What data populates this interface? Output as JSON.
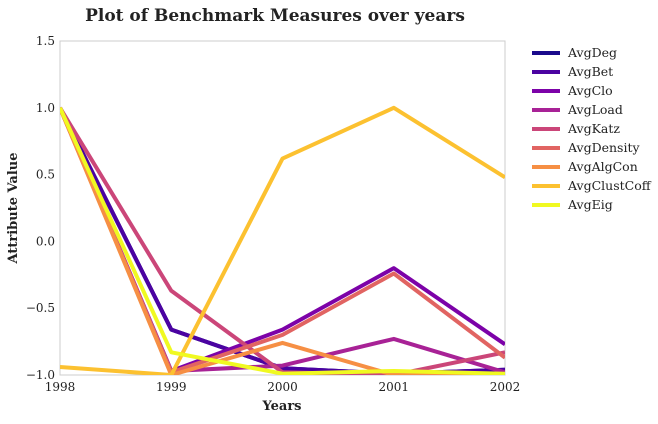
{
  "chart_data": {
    "type": "line",
    "title": "Plot of Benchmark Measures over years",
    "xlabel": "Years",
    "ylabel": "Attribute Value",
    "x": [
      1998,
      1999,
      2000,
      2001,
      2002
    ],
    "x_ticks": [
      "1998",
      "1999",
      "2000",
      "2001",
      "2002"
    ],
    "xlim": [
      1998,
      2002
    ],
    "ylim": [
      -1.0,
      1.5
    ],
    "y_ticks": [
      "1.5",
      "1.0",
      "0.5",
      "0.0",
      "−0.5",
      "−1.0"
    ],
    "y_tick_values": [
      1.5,
      1.0,
      0.5,
      0.0,
      -0.5,
      -1.0
    ],
    "grid": false,
    "legend_position": "outside-right",
    "series": [
      {
        "name": "AvgDeg",
        "color": "#1a0a8c",
        "values": [
          1.0,
          -0.66,
          -0.95,
          -0.99,
          -0.96
        ]
      },
      {
        "name": "AvgBet",
        "color": "#4b03a1",
        "values": [
          1.0,
          -0.66,
          -0.95,
          -0.99,
          -0.96
        ]
      },
      {
        "name": "AvgClo",
        "color": "#7c02a8",
        "values": [
          1.0,
          -0.97,
          -0.66,
          -0.2,
          -0.77
        ]
      },
      {
        "name": "AvgLoad",
        "color": "#a82296",
        "values": [
          1.0,
          -0.97,
          -0.93,
          -0.73,
          -0.98
        ]
      },
      {
        "name": "AvgKatz",
        "color": "#cb4679",
        "values": [
          1.0,
          -0.37,
          -0.98,
          -1.0,
          -0.83
        ]
      },
      {
        "name": "AvgDensity",
        "color": "#e16462",
        "values": [
          1.0,
          -0.98,
          -0.7,
          -0.24,
          -0.87
        ]
      },
      {
        "name": "AvgAlgCon",
        "color": "#f68f44",
        "values": [
          1.0,
          -1.0,
          -0.76,
          -1.0,
          -1.0
        ]
      },
      {
        "name": "AvgClustCoff",
        "color": "#fcc130",
        "values": [
          -0.94,
          -1.0,
          0.62,
          1.0,
          0.48
        ]
      },
      {
        "name": "AvgEig",
        "color": "#f0f921",
        "values": [
          1.0,
          -0.83,
          -0.99,
          -0.97,
          -0.99
        ]
      }
    ]
  }
}
